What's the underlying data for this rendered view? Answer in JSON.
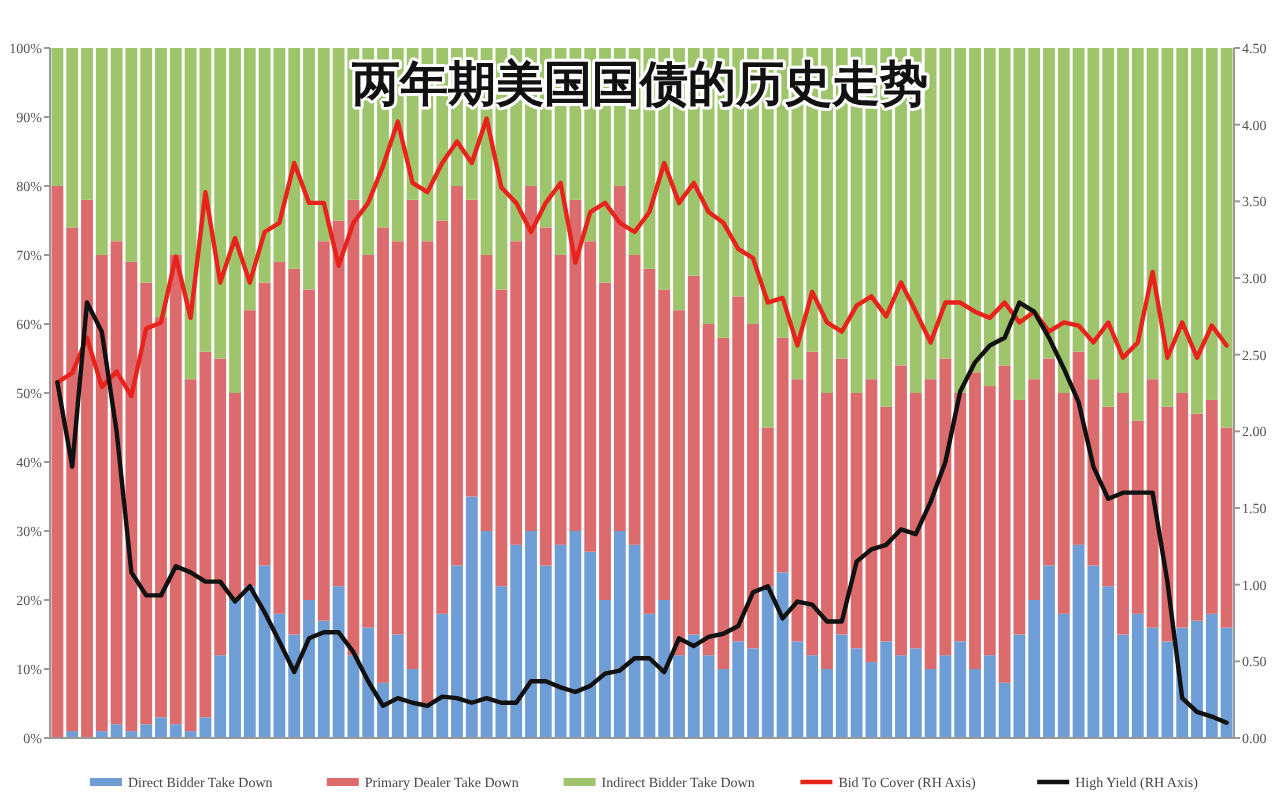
{
  "chart_data": {
    "type": "bar",
    "title": "两年期美国国债的历史走势",
    "stacked": true,
    "legend": "bottom",
    "categories": [
      null,
      null,
      null,
      null,
      null,
      null,
      null,
      null,
      null,
      null,
      null,
      null,
      null,
      null,
      null,
      null,
      null,
      null,
      null,
      null,
      null,
      null,
      null,
      null,
      null,
      null,
      null,
      null,
      null,
      null,
      null,
      null,
      null,
      null,
      null,
      null,
      null,
      null,
      null,
      null,
      null,
      null,
      null,
      null,
      null,
      null,
      null,
      null,
      null,
      null,
      null,
      null,
      null,
      null,
      null,
      null,
      null,
      null,
      null,
      null,
      null,
      null,
      null,
      null,
      null,
      null,
      null,
      null,
      null,
      null,
      null,
      null,
      null,
      null,
      null,
      null,
      null,
      null,
      null,
      null
    ],
    "ylim": [
      0,
      100
    ],
    "yticks": [
      {
        "value": 0,
        "label": "0%"
      },
      {
        "value": 10,
        "label": "10%"
      },
      {
        "value": 20,
        "label": "20%"
      },
      {
        "value": 30,
        "label": "30%"
      },
      {
        "value": 40,
        "label": "40%"
      },
      {
        "value": 50,
        "label": "50%"
      },
      {
        "value": 60,
        "label": "60%"
      },
      {
        "value": 70,
        "label": "70%"
      },
      {
        "value": 80,
        "label": "80%"
      },
      {
        "value": 90,
        "label": "90%"
      },
      {
        "value": 100,
        "label": "100%"
      }
    ],
    "y2lim": [
      0,
      4.5
    ],
    "y2ticks": [
      {
        "value": 0,
        "label": "0.00"
      },
      {
        "value": 0.5,
        "label": "0.50"
      },
      {
        "value": 1,
        "label": "1.00"
      },
      {
        "value": 1.5,
        "label": "1.50"
      },
      {
        "value": 2,
        "label": "2.00"
      },
      {
        "value": 2.5,
        "label": "2.50"
      },
      {
        "value": 3,
        "label": "3.00"
      },
      {
        "value": 3.5,
        "label": "3.50"
      },
      {
        "value": 4,
        "label": "4.00"
      },
      {
        "value": 4.5,
        "label": "4.50"
      }
    ],
    "series": [
      {
        "name": "Direct Bidder Take Down",
        "color": "#6f9dd6",
        "values": [
          0,
          1,
          0,
          1,
          2,
          1,
          2,
          3,
          2,
          1,
          3,
          12,
          20,
          22,
          25,
          18,
          15,
          20,
          17,
          22,
          12,
          16,
          8,
          15,
          10,
          5,
          18,
          25,
          35,
          30,
          22,
          28,
          30,
          25,
          28,
          30,
          27,
          20,
          30,
          28,
          18,
          20,
          12,
          15,
          12,
          10,
          14,
          13,
          22,
          24,
          14,
          12,
          10,
          15,
          13,
          11,
          14,
          12,
          13,
          10,
          12,
          14,
          10,
          12,
          8,
          15,
          20,
          25,
          18,
          28,
          25,
          22,
          15,
          18,
          16,
          14,
          16,
          17,
          18,
          16
        ]
      },
      {
        "name": "Primary Dealer Take Down",
        "color": "#dc6b6e",
        "values": [
          80,
          73,
          78,
          69,
          70,
          68,
          64,
          58,
          68,
          51,
          53,
          43,
          30,
          40,
          41,
          51,
          53,
          45,
          55,
          53,
          66,
          54,
          66,
          57,
          68,
          67,
          57,
          55,
          43,
          40,
          43,
          44,
          50,
          49,
          42,
          48,
          45,
          46,
          50,
          42,
          50,
          45,
          50,
          52,
          48,
          48,
          50,
          47,
          23,
          34,
          38,
          44,
          40,
          40,
          37,
          41,
          34,
          42,
          37,
          42,
          43,
          36,
          43,
          39,
          46,
          34,
          32,
          30,
          32,
          28,
          27,
          26,
          35,
          28,
          36,
          34,
          34,
          30,
          31,
          29
        ]
      },
      {
        "name": "Indirect Bidder Take Down",
        "color": "#9ec46c",
        "values": [
          20,
          26,
          22,
          30,
          28,
          31,
          34,
          39,
          30,
          48,
          44,
          45,
          50,
          38,
          34,
          31,
          32,
          35,
          28,
          25,
          22,
          30,
          26,
          28,
          22,
          28,
          25,
          20,
          22,
          30,
          35,
          28,
          20,
          26,
          30,
          22,
          28,
          34,
          20,
          30,
          32,
          35,
          38,
          33,
          40,
          42,
          36,
          40,
          55,
          42,
          48,
          44,
          50,
          45,
          50,
          48,
          52,
          46,
          50,
          48,
          45,
          50,
          47,
          49,
          46,
          51,
          48,
          45,
          50,
          44,
          48,
          52,
          50,
          54,
          48,
          52,
          50,
          53,
          51,
          55
        ]
      },
      {
        "name": "Bid To Cover (RH Axis)",
        "type": "line",
        "axis": "y2",
        "color": "#e8231c",
        "values": [
          2.32,
          2.38,
          2.61,
          2.29,
          2.39,
          2.23,
          2.67,
          2.71,
          3.14,
          2.74,
          3.56,
          2.97,
          3.26,
          2.97,
          3.3,
          3.36,
          3.75,
          3.49,
          3.49,
          3.08,
          3.36,
          3.49,
          3.73,
          4.02,
          3.62,
          3.56,
          3.75,
          3.89,
          3.75,
          4.04,
          3.59,
          3.49,
          3.3,
          3.49,
          3.62,
          3.1,
          3.43,
          3.49,
          3.36,
          3.3,
          3.43,
          3.75,
          3.49,
          3.62,
          3.43,
          3.36,
          3.19,
          3.13,
          2.84,
          2.87,
          2.56,
          2.91,
          2.71,
          2.65,
          2.82,
          2.88,
          2.75,
          2.97,
          2.78,
          2.58,
          2.84,
          2.84,
          2.78,
          2.74,
          2.84,
          2.71,
          2.78,
          2.65,
          2.71,
          2.69,
          2.58,
          2.71,
          2.48,
          2.58,
          3.04,
          2.48,
          2.71,
          2.48,
          2.69,
          2.56
        ]
      },
      {
        "name": "High Yield (RH Axis)",
        "type": "line",
        "axis": "y2",
        "color": "#111111",
        "values": [
          2.32,
          1.77,
          2.84,
          2.65,
          2.0,
          1.08,
          0.93,
          0.93,
          1.12,
          1.08,
          1.02,
          1.02,
          0.89,
          0.99,
          0.82,
          0.63,
          0.43,
          0.65,
          0.69,
          0.69,
          0.56,
          0.37,
          0.21,
          0.26,
          0.23,
          0.21,
          0.27,
          0.26,
          0.23,
          0.26,
          0.23,
          0.23,
          0.37,
          0.37,
          0.33,
          0.3,
          0.34,
          0.42,
          0.44,
          0.52,
          0.52,
          0.43,
          0.65,
          0.6,
          0.66,
          0.68,
          0.73,
          0.95,
          0.99,
          0.78,
          0.89,
          0.87,
          0.76,
          0.76,
          1.15,
          1.23,
          1.26,
          1.36,
          1.33,
          1.54,
          1.8,
          2.26,
          2.45,
          2.56,
          2.61,
          2.84,
          2.78,
          2.61,
          2.41,
          2.19,
          1.77,
          1.56,
          1.6,
          1.6,
          1.6,
          1.02,
          0.26,
          0.17,
          0.14,
          0.1
        ]
      }
    ]
  }
}
